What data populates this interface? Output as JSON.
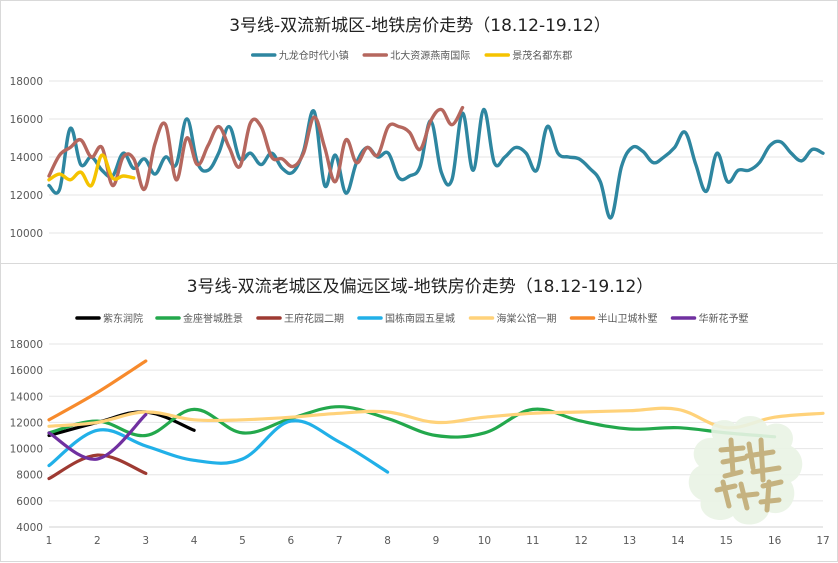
{
  "chart_data": [
    {
      "type": "line",
      "title": "3号线-双流新城区-地铁房价走势（18.12-19.12）",
      "xlabel": "",
      "ylabel": "",
      "ylim": [
        8000,
        18000
      ],
      "yticks": [
        10000,
        12000,
        14000,
        16000,
        18000
      ],
      "xlim": [
        0,
        73
      ],
      "legend_position": "top",
      "grid": true,
      "series": [
        {
          "name": "九龙仓时代小镇",
          "color": "#2e86a0",
          "x": [
            0,
            1,
            2,
            3,
            4,
            5,
            6,
            7,
            8,
            9,
            10,
            11,
            12,
            13,
            14,
            15,
            16,
            17,
            18,
            19,
            20,
            21,
            22,
            23,
            24,
            25,
            26,
            27,
            28,
            29,
            30,
            31,
            32,
            33,
            34,
            35,
            36,
            37,
            38,
            39,
            40,
            41,
            42,
            43,
            44,
            45,
            46,
            47,
            48,
            49,
            50,
            51,
            52,
            53,
            54,
            55,
            56,
            57,
            58,
            59,
            60,
            61,
            62,
            63,
            64,
            65,
            66,
            67,
            68,
            69,
            70,
            71,
            72,
            73
          ],
          "y": [
            12500,
            12300,
            15500,
            13600,
            14000,
            13300,
            13000,
            14200,
            13400,
            13900,
            13100,
            14000,
            13600,
            16000,
            13700,
            13300,
            14200,
            15600,
            13900,
            14200,
            13600,
            14200,
            13400,
            13200,
            14300,
            16400,
            12500,
            14100,
            12100,
            13700,
            14500,
            14000,
            14200,
            12900,
            13000,
            13500,
            15900,
            13200,
            12800,
            16300,
            13300,
            16500,
            13700,
            14000,
            14500,
            14200,
            13300,
            15600,
            14200,
            14000,
            13900,
            13400,
            12700,
            10800,
            13500,
            14500,
            14300,
            13700,
            14000,
            14500,
            15300,
            13600,
            12200,
            14200,
            12700,
            13300,
            13300,
            13700,
            14600,
            14800,
            14200,
            13800,
            14400,
            14200
          ]
        },
        {
          "name": "北大资源燕南国际",
          "color": "#b5675e",
          "x": [
            0,
            1,
            2,
            3,
            4,
            5,
            6,
            7,
            8,
            9,
            10,
            11,
            12,
            13,
            14,
            15,
            16,
            17,
            18,
            19,
            20,
            21,
            22,
            23,
            24,
            25,
            26,
            27,
            28,
            29,
            30,
            31,
            32,
            33,
            34,
            35,
            36,
            37,
            38,
            39
          ],
          "y": [
            13000,
            14100,
            14500,
            14900,
            14000,
            14500,
            12500,
            14000,
            13900,
            12300,
            14700,
            15700,
            12800,
            15000,
            13600,
            14600,
            15600,
            14500,
            13500,
            15800,
            15600,
            14000,
            13900,
            13500,
            14200,
            16100,
            14500,
            12700,
            14900,
            13700,
            14500,
            14100,
            15600,
            15600,
            15300,
            14400,
            15900,
            16500,
            15700,
            16600
          ]
        },
        {
          "name": "景茂名都东郡",
          "color": "#f5c300",
          "x": [
            0,
            1,
            2,
            3,
            4,
            5,
            6,
            7,
            8
          ],
          "y": [
            12800,
            13100,
            12800,
            13200,
            12500,
            14100,
            12900,
            13000,
            12900
          ]
        }
      ]
    },
    {
      "type": "line",
      "title": "3号线-双流老城区及偏远区域-地铁房价走势（18.12-19.12）",
      "xlabel": "",
      "ylabel": "",
      "ylim": [
        4000,
        18000
      ],
      "yticks": [
        4000,
        6000,
        8000,
        10000,
        12000,
        14000,
        16000,
        18000
      ],
      "categories": [
        "1",
        "2",
        "3",
        "4",
        "5",
        "6",
        "7",
        "8",
        "9",
        "10",
        "11",
        "12",
        "13",
        "14",
        "15",
        "16",
        "17"
      ],
      "legend_position": "top",
      "grid": true,
      "series": [
        {
          "name": "紫东润院",
          "color": "#000000",
          "x": [
            1,
            2,
            3,
            4
          ],
          "y": [
            11000,
            12000,
            12800,
            11400
          ]
        },
        {
          "name": "金座誉城胜景",
          "color": "#23a84c",
          "x": [
            1,
            2,
            3,
            4,
            5,
            6,
            7,
            8,
            9,
            10,
            11,
            12,
            13,
            14,
            15,
            16
          ],
          "y": [
            11200,
            12100,
            11000,
            13000,
            11200,
            12300,
            13200,
            12300,
            11000,
            11200,
            13000,
            12100,
            11500,
            11600,
            11200,
            10900
          ]
        },
        {
          "name": "王府花园二期",
          "color": "#9e3a32",
          "x": [
            1,
            2,
            3
          ],
          "y": [
            7700,
            9500,
            8100
          ]
        },
        {
          "name": "国栋南园五星城",
          "color": "#21b0e8",
          "x": [
            1,
            2,
            3,
            4,
            5,
            6,
            7,
            8
          ],
          "y": [
            8700,
            11400,
            10200,
            9100,
            9200,
            12100,
            10500,
            8200
          ]
        },
        {
          "name": "海棠公馆一期",
          "color": "#ffd27a",
          "x": [
            1,
            2,
            3,
            4,
            5,
            6,
            7,
            8,
            9,
            10,
            11,
            12,
            13,
            14,
            15,
            16,
            17
          ],
          "y": [
            11700,
            12000,
            12800,
            12200,
            12200,
            12400,
            12700,
            12800,
            12000,
            12400,
            12700,
            12800,
            12900,
            13000,
            11600,
            12400,
            12700
          ]
        },
        {
          "name": "半山卫城朴墅",
          "color": "#f78a2c",
          "x": [
            1,
            2,
            3
          ],
          "y": [
            12200,
            14300,
            16700
          ]
        },
        {
          "name": "华新花予墅",
          "color": "#7030a0",
          "x": [
            1,
            2,
            3
          ],
          "y": [
            11200,
            9200,
            12600
          ]
        }
      ]
    }
  ]
}
